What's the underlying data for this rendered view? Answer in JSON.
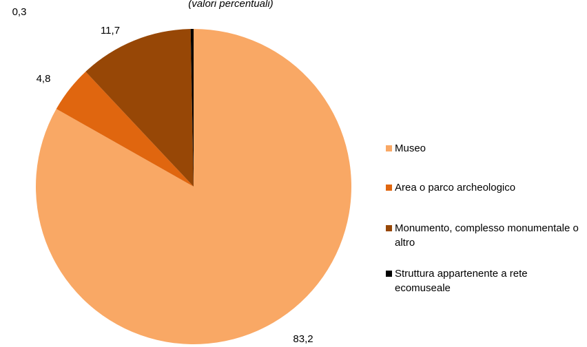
{
  "chart_data": {
    "type": "pie",
    "subtitle": "(valori percentuali)",
    "categories": [
      "Museo",
      "Area o parco archeologico",
      "Monumento, complesso monumentale o altro",
      "Struttura appartenente a rete ecomuseale"
    ],
    "values": [
      83.2,
      4.8,
      11.7,
      0.3
    ],
    "value_labels": [
      "83,2",
      "4,8",
      "11,7",
      "0,3"
    ],
    "colors": [
      "#f9a865",
      "#e0660f",
      "#974706",
      "#000000"
    ]
  }
}
